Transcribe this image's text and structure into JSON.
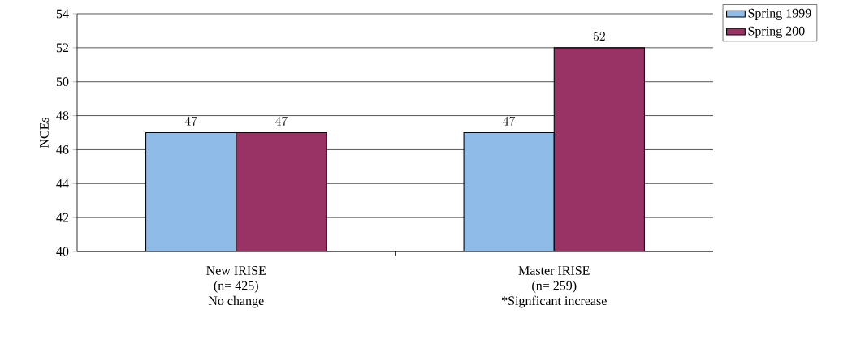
{
  "chart_data": {
    "type": "bar",
    "ylabel": "NCEs",
    "categories": [
      "New IRISE\n(n= 425)\nNo change",
      "Master IRISE\n(n= 259)\n*Signficant increase"
    ],
    "series": [
      {
        "name": "Spring 1999",
        "color": "#8fbbe8",
        "values": [
          47,
          47
        ]
      },
      {
        "name": "Spring 200",
        "color": "#993366",
        "values": [
          47,
          52
        ]
      }
    ],
    "ylim": [
      40,
      54
    ],
    "yticks": [
      40,
      42,
      44,
      46,
      48,
      50,
      52,
      54
    ],
    "grid": "y",
    "legend": "top right",
    "data_labels": true
  }
}
